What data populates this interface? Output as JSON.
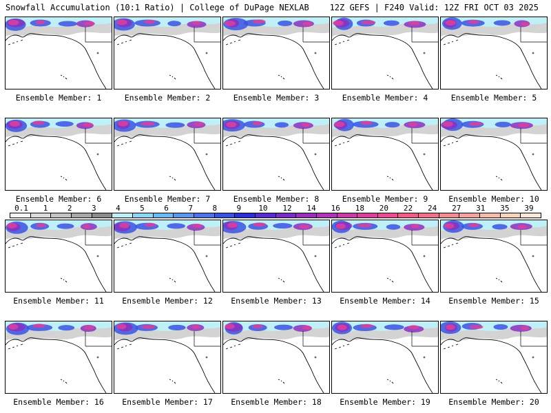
{
  "header": {
    "title": "Snowfall Accumulation (10:1 Ratio) | College of DuPage NEXLAB",
    "run": "12Z GEFS | F240 Valid: 12Z FRI OCT 03 2025"
  },
  "panels": [
    {
      "label": "Ensemble Member: 1"
    },
    {
      "label": "Ensemble Member: 2"
    },
    {
      "label": "Ensemble Member: 3"
    },
    {
      "label": "Ensemble Member: 4"
    },
    {
      "label": "Ensemble Member: 5"
    },
    {
      "label": "Ensemble Member: 6"
    },
    {
      "label": "Ensemble Member: 7"
    },
    {
      "label": "Ensemble Member: 8"
    },
    {
      "label": "Ensemble Member: 9"
    },
    {
      "label": "Ensemble Member: 10"
    },
    {
      "label": "Ensemble Member: 11"
    },
    {
      "label": "Ensemble Member: 12"
    },
    {
      "label": "Ensemble Member: 13"
    },
    {
      "label": "Ensemble Member: 14"
    },
    {
      "label": "Ensemble Member: 15"
    },
    {
      "label": "Ensemble Member: 16"
    },
    {
      "label": "Ensemble Member: 17"
    },
    {
      "label": "Ensemble Member: 18"
    },
    {
      "label": "Ensemble Member: 19"
    },
    {
      "label": "Ensemble Member: 20"
    }
  ],
  "colorbar": {
    "ticks": [
      "0.1",
      "1",
      "2",
      "3",
      "4",
      "5",
      "6",
      "7",
      "8",
      "9",
      "10",
      "12",
      "14",
      "16",
      "18",
      "20",
      "22",
      "24",
      "27",
      "31",
      "35",
      "39"
    ],
    "colors": [
      "#f4f4f4",
      "#dcdcdc",
      "#c4c4c4",
      "#a8a8a8",
      "#8c8c8c",
      "#bfeff7",
      "#8fd6f4",
      "#6cb8f0",
      "#5a96ec",
      "#4a74e6",
      "#3a52e0",
      "#2a2fd8",
      "#5a2bd0",
      "#7a2dc6",
      "#9630bc",
      "#b034b4",
      "#c83aa8",
      "#dc409e",
      "#ec4c94",
      "#f05c88",
      "#f0728a",
      "#f08c94",
      "#f2a4a0",
      "#f4bcaa",
      "#f6d4bc",
      "#f8e8d8"
    ]
  },
  "map_colors": {
    "land_gray": "#c0c0c0",
    "light_blue": "#bfeff7",
    "blue": "#3a52e0",
    "magenta": "#dc409e",
    "purple": "#8a30c0"
  }
}
